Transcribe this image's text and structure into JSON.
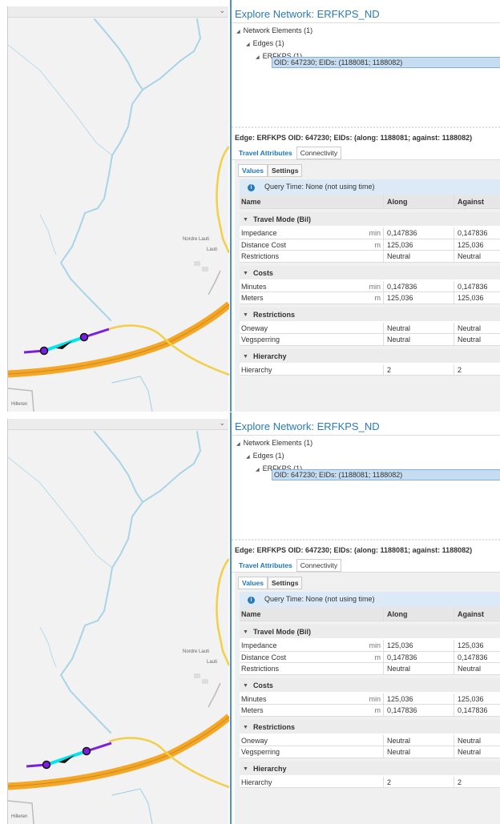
{
  "screenshots": [
    {
      "map": {
        "labels": {
          "nordre": "Nordre Lauti",
          "lauti": "Lauti",
          "hilleren": "Hilleren"
        },
        "collapse_icon": "chevron-down-icon"
      },
      "title": "Explore Network: ERFKPS_ND",
      "tree": [
        "Network Elements (1)",
        "Edges (1)",
        "ERFKPS (1)"
      ],
      "selected": "OID: 647230; EIDs: (1188081; 1188082)",
      "edge_header": "Edge: ERFKPS OID: 647230; EIDs: (along: 1188081; against: 1188082)",
      "tabs": [
        "Travel Attributes",
        "Connectivity"
      ],
      "subtabs": [
        "Values",
        "Settings"
      ],
      "query": "Query Time: None (not using time)",
      "columns": [
        "Name",
        "Along",
        "Against"
      ],
      "groups": [
        {
          "name": "Travel Mode (Bil)",
          "rows": [
            {
              "name": "Impedance",
              "unit": "min",
              "along": "0,147836",
              "against": "0,147836"
            },
            {
              "name": "Distance Cost",
              "unit": "m",
              "along": "125,036",
              "against": "125,036"
            },
            {
              "name": "Restrictions",
              "unit": "",
              "along": "Neutral",
              "against": "Neutral"
            }
          ]
        },
        {
          "name": "Costs",
          "rows": [
            {
              "name": "Minutes",
              "unit": "min",
              "along": "0,147836",
              "against": "0,147836"
            },
            {
              "name": "Meters",
              "unit": "m",
              "along": "125,036",
              "against": "125,036"
            }
          ]
        },
        {
          "name": "Restrictions",
          "rows": [
            {
              "name": "Oneway",
              "unit": "",
              "along": "Neutral",
              "against": "Neutral"
            },
            {
              "name": "Vegsperring",
              "unit": "",
              "along": "Neutral",
              "against": "Neutral"
            }
          ]
        },
        {
          "name": "Hierarchy",
          "rows": [
            {
              "name": "Hierarchy",
              "unit": "",
              "along": "2",
              "against": "2"
            }
          ]
        }
      ]
    },
    {
      "map": {
        "labels": {
          "nordre": "Nordre Lauti",
          "lauti": "Lauti",
          "hilleren": "Hilleren"
        },
        "collapse_icon": "chevron-down-icon"
      },
      "title": "Explore Network: ERFKPS_ND",
      "tree": [
        "Network Elements (1)",
        "Edges (1)",
        "ERFKPS (1)"
      ],
      "selected": "OID: 647230; EIDs: (1188081; 1188082)",
      "edge_header": "Edge: ERFKPS OID: 647230; EIDs: (along: 1188081; against: 1188082)",
      "tabs": [
        "Travel Attributes",
        "Connectivity"
      ],
      "subtabs": [
        "Values",
        "Settings"
      ],
      "query": "Query Time: None (not using time)",
      "columns": [
        "Name",
        "Along",
        "Against"
      ],
      "groups": [
        {
          "name": "Travel Mode (Bil)",
          "rows": [
            {
              "name": "Impedance",
              "unit": "min",
              "along": "125,036",
              "against": "125,036"
            },
            {
              "name": "Distance Cost",
              "unit": "m",
              "along": "0,147836",
              "against": "0,147836"
            },
            {
              "name": "Restrictions",
              "unit": "",
              "along": "Neutral",
              "against": "Neutral"
            }
          ]
        },
        {
          "name": "Costs",
          "rows": [
            {
              "name": "Minutes",
              "unit": "min",
              "along": "125,036",
              "against": "125,036"
            },
            {
              "name": "Meters",
              "unit": "m",
              "along": "0,147836",
              "against": "0,147836"
            }
          ]
        },
        {
          "name": "Restrictions",
          "rows": [
            {
              "name": "Oneway",
              "unit": "",
              "along": "Neutral",
              "against": "Neutral"
            },
            {
              "name": "Vegsperring",
              "unit": "",
              "along": "Neutral",
              "against": "Neutral"
            }
          ]
        },
        {
          "name": "Hierarchy",
          "rows": [
            {
              "name": "Hierarchy",
              "unit": "",
              "along": "2",
              "against": "2"
            }
          ]
        }
      ]
    }
  ],
  "colors": {
    "accent": "#2a7ab8",
    "selected_edge": "#00e5ee",
    "edge": "#7a1fe0",
    "motorway": "#f5a623",
    "minor_road": "#f2cf4a",
    "river": "#a8d4e6"
  }
}
